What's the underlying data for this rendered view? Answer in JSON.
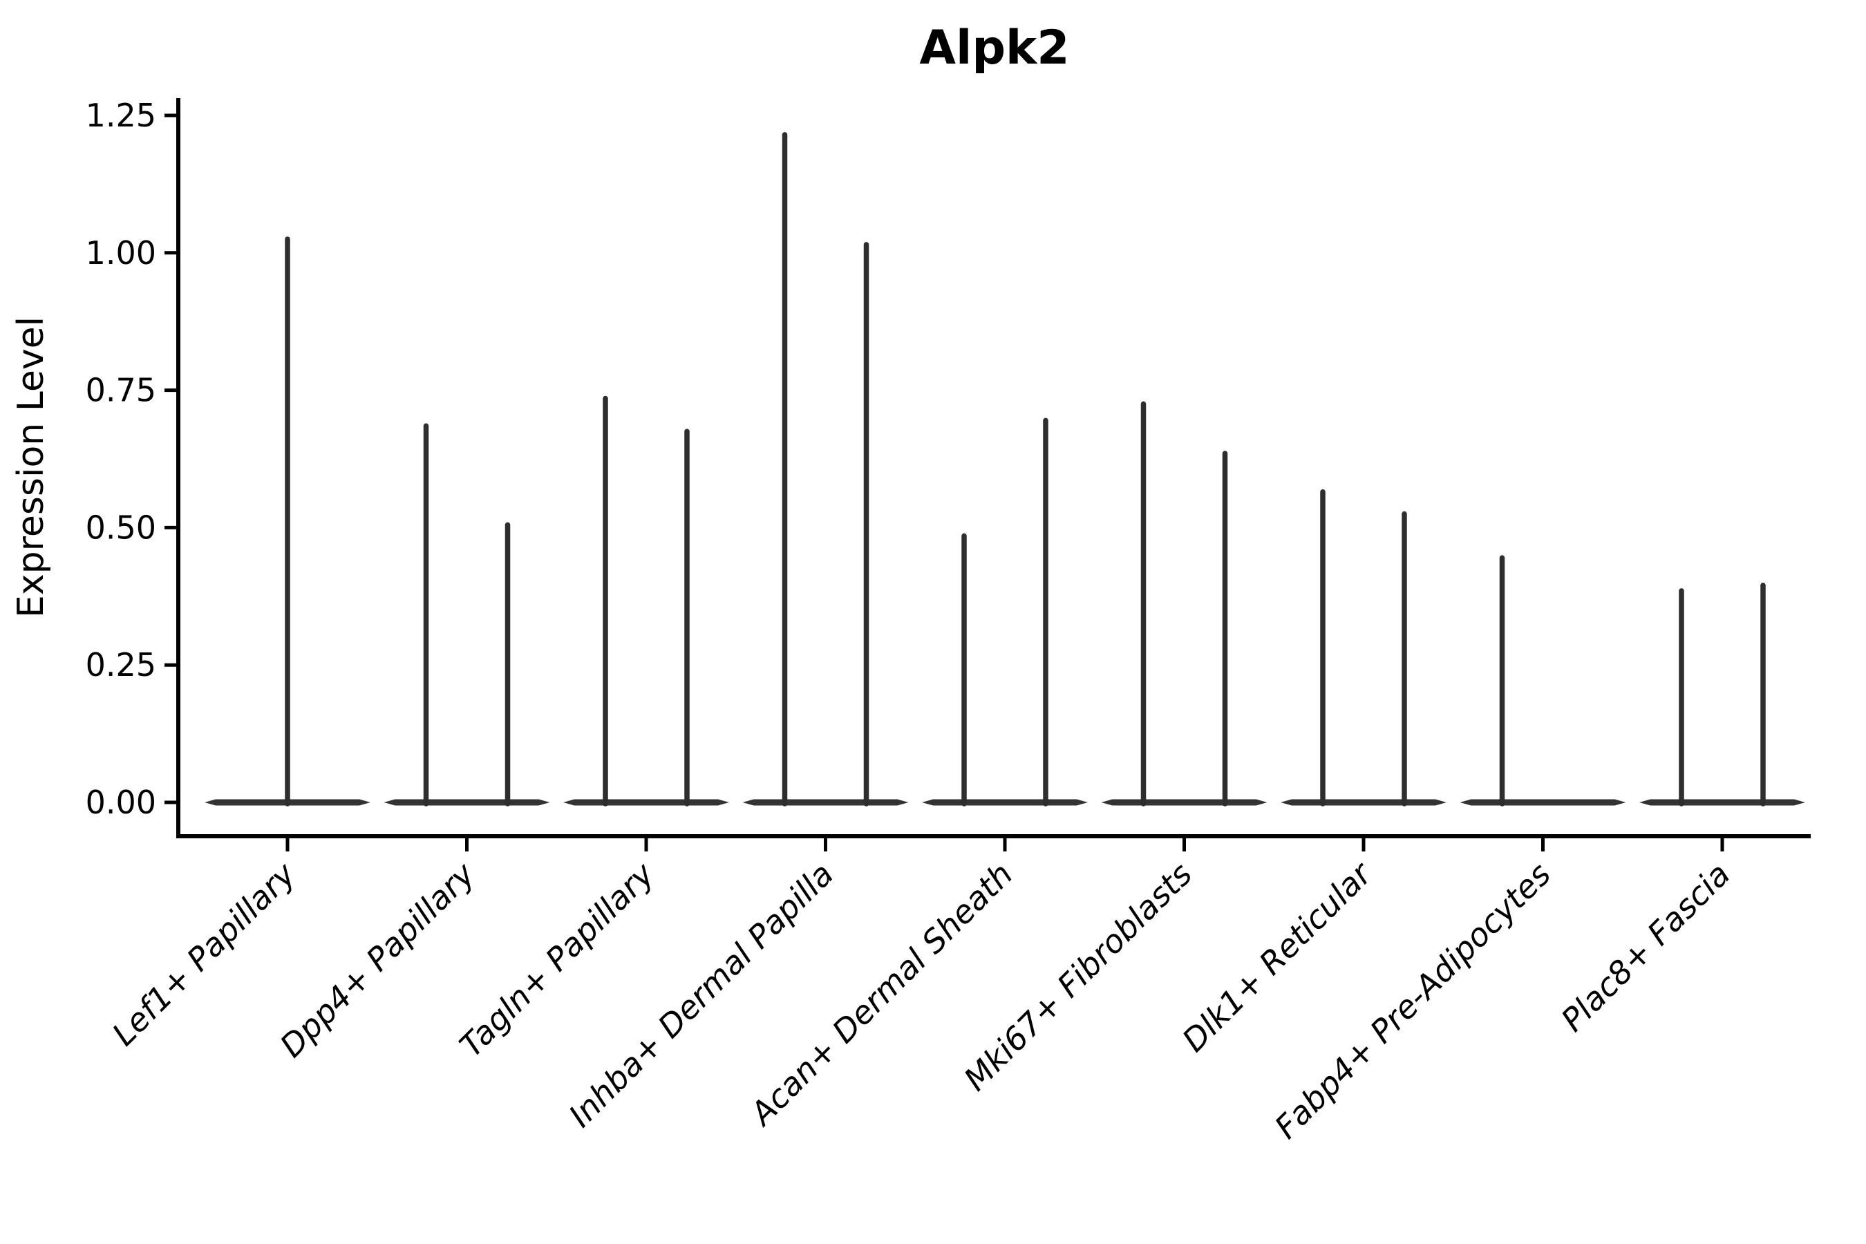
{
  "chart_data": {
    "type": "violin",
    "title": "Alpk2",
    "xlabel": "",
    "ylabel": "Expression Level",
    "ylim": [
      0,
      1.25
    ],
    "grid": false,
    "legend": null,
    "yticks": [
      {
        "value": 0.0,
        "label": "0.00"
      },
      {
        "value": 0.25,
        "label": "0.25"
      },
      {
        "value": 0.5,
        "label": "0.50"
      },
      {
        "value": 0.75,
        "label": "0.75"
      },
      {
        "value": 1.0,
        "label": "1.00"
      },
      {
        "value": 1.25,
        "label": "1.25"
      }
    ],
    "categories": [
      "Lef1+ Papillary",
      "Dpp4+ Papillary",
      "Tagln+ Papillary",
      "Inhba+ Dermal Papilla",
      "Acan+ Dermal Sheath",
      "Mki67+ Fibroblasts",
      "Dlk1+ Reticular",
      "Fabp4+ Pre-Adipocytes",
      "Plac8+ Fascia"
    ],
    "violins": [
      {
        "category": "Lef1+ Papillary",
        "spikes": [
          {
            "position": "center",
            "max": 1.03
          }
        ]
      },
      {
        "category": "Dpp4+ Papillary",
        "spikes": [
          {
            "position": "left",
            "max": 0.69
          },
          {
            "position": "right",
            "max": 0.51
          }
        ]
      },
      {
        "category": "Tagln+ Papillary",
        "spikes": [
          {
            "position": "left",
            "max": 0.74
          },
          {
            "position": "right",
            "max": 0.68
          }
        ]
      },
      {
        "category": "Inhba+ Dermal Papilla",
        "spikes": [
          {
            "position": "left",
            "max": 1.22
          },
          {
            "position": "right",
            "max": 1.02
          }
        ]
      },
      {
        "category": "Acan+ Dermal Sheath",
        "spikes": [
          {
            "position": "left",
            "max": 0.49
          },
          {
            "position": "right",
            "max": 0.7
          }
        ]
      },
      {
        "category": "Mki67+ Fibroblasts",
        "spikes": [
          {
            "position": "left",
            "max": 0.73
          },
          {
            "position": "right",
            "max": 0.64
          }
        ]
      },
      {
        "category": "Dlk1+ Reticular",
        "spikes": [
          {
            "position": "left",
            "max": 0.57
          },
          {
            "position": "right",
            "max": 0.53
          }
        ]
      },
      {
        "category": "Fabp4+ Pre-Adipocytes",
        "spikes": [
          {
            "position": "left",
            "max": 0.45
          }
        ]
      },
      {
        "category": "Plac8+ Fascia",
        "spikes": [
          {
            "position": "left",
            "max": 0.39
          },
          {
            "position": "right",
            "max": 0.4
          }
        ]
      }
    ],
    "colors": {
      "violin": "#333333",
      "spike": "#2e2e2e",
      "axis": "#000000",
      "background": "#ffffff"
    }
  }
}
